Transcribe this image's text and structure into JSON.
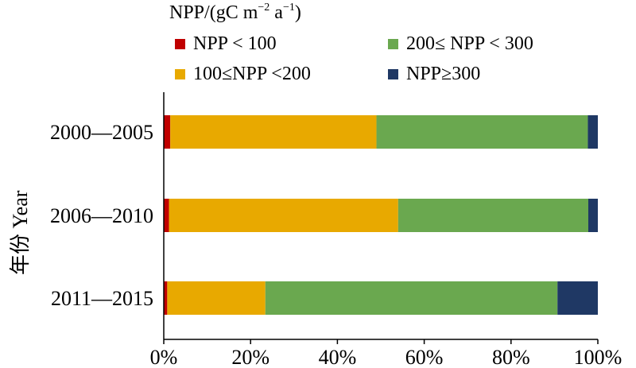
{
  "chart_data": {
    "type": "bar",
    "orientation": "horizontal",
    "stacked": true,
    "legend_title": {
      "base": "NPP/(gC m",
      "exp1": "−2",
      "mid": " a",
      "exp2": "−1",
      "end": ")"
    },
    "categories": [
      "2000—2005",
      "2006—2010",
      "2011—2015"
    ],
    "series": [
      {
        "name": "NPP < 100",
        "color": "#c00000",
        "values": [
          1.5,
          1.2,
          0.8
        ]
      },
      {
        "name": "100≤NPP <200",
        "color": "#e8a900",
        "values": [
          47.5,
          52.8,
          22.6
        ]
      },
      {
        "name": "200≤ NPP < 300",
        "color": "#6aa84f",
        "values": [
          48.7,
          43.8,
          67.3
        ]
      },
      {
        "name": "NPP≥300",
        "color": "#1f3864",
        "values": [
          2.3,
          2.2,
          9.3
        ]
      }
    ],
    "xlim": [
      0,
      100
    ],
    "xticks": [
      "0%",
      "20%",
      "40%",
      "60%",
      "80%",
      "100%"
    ],
    "ylabel": "年份 Year",
    "grid": false,
    "legend_position": "top"
  }
}
